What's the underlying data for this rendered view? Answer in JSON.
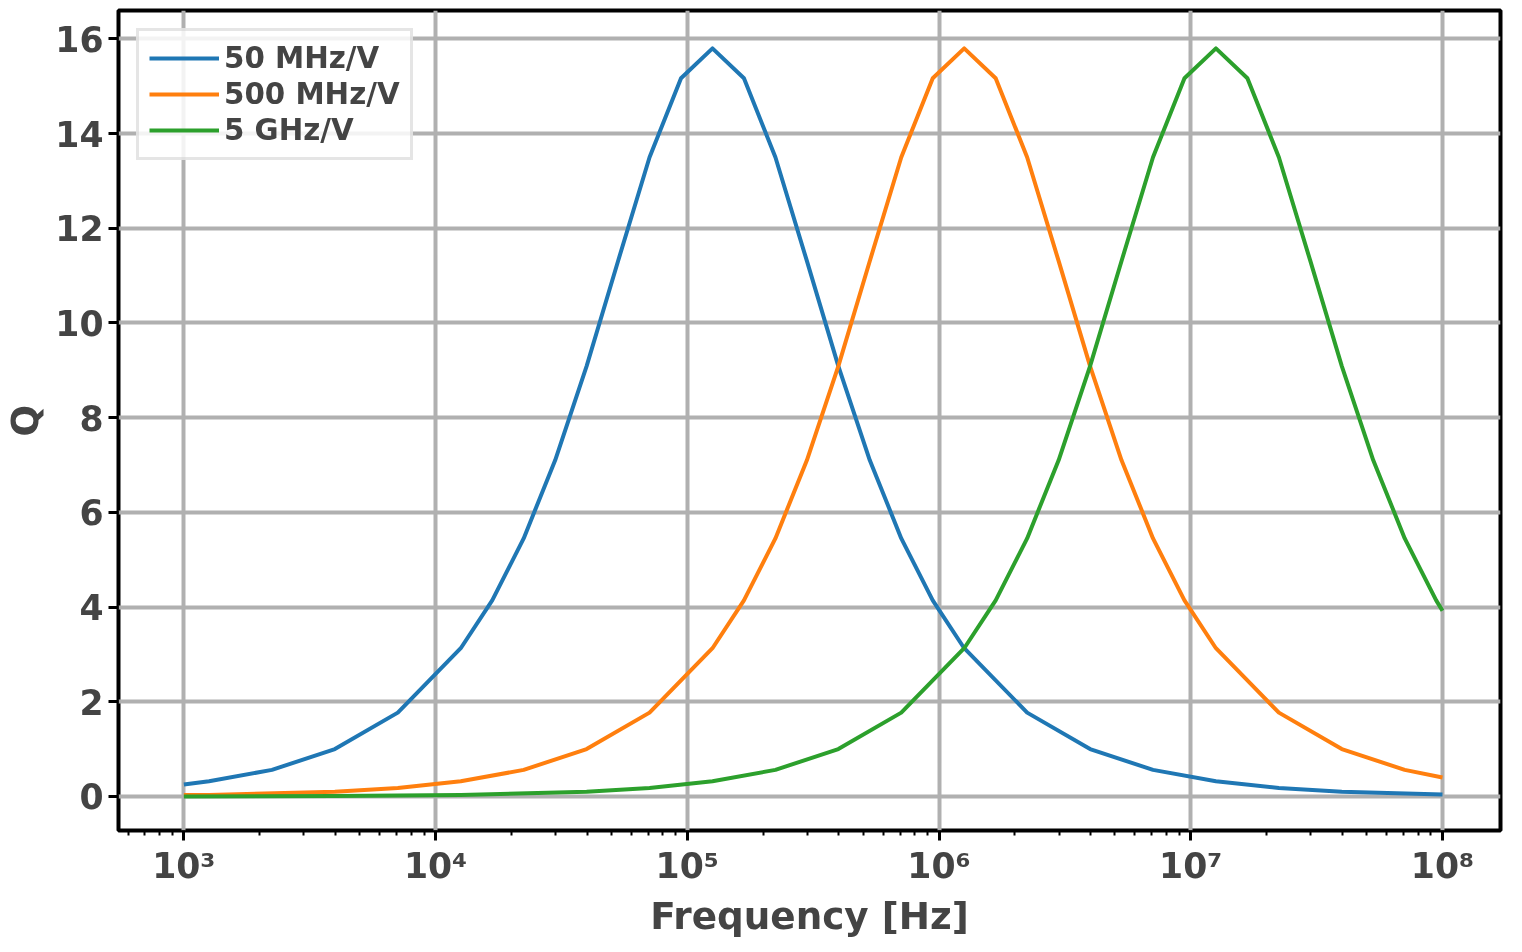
{
  "chart_data": {
    "type": "line",
    "xlabel": "Frequency [Hz]",
    "ylabel": "Q",
    "log": "x",
    "grid": true,
    "legend": "top left",
    "line_style": "solid",
    "marker": "none",
    "xlim": [
      550,
      170000000.0
    ],
    "ylim": [
      -0.72,
      16.6
    ],
    "xticks": [
      {
        "value": 1000.0,
        "label": "10³"
      },
      {
        "value": 10000.0,
        "label": "10⁴"
      },
      {
        "value": 100000.0,
        "label": "10⁵"
      },
      {
        "value": 1000000.0,
        "label": "10⁶"
      },
      {
        "value": 10000000.0,
        "label": "10⁷"
      },
      {
        "value": 100000000.0,
        "label": "10⁸"
      }
    ],
    "yticks": [
      0,
      2,
      4,
      6,
      8,
      10,
      12,
      14,
      16
    ],
    "series": [
      {
        "name": "50 MHz/V",
        "color": "#1f77b4",
        "x": [
          1000.0,
          1258.9,
          2238.7,
          3981.1,
          7079.5,
          12589.0,
          16788.0,
          22387.0,
          29854.0,
          39811.0,
          53088.0,
          70795.0,
          94406.0,
          125890.0,
          167880.0,
          223870.0,
          298540.0,
          398110.0,
          530880.0,
          707950.0,
          944060.0,
          1258900.0,
          2238700.0,
          3981100.0,
          7079500.0,
          12589000.0,
          22387000.0,
          39811000.0,
          100000000.0
        ],
        "values": [
          0.25,
          0.32,
          0.56,
          1.0,
          1.77,
          3.13,
          4.14,
          5.45,
          7.1,
          9.09,
          11.31,
          13.5,
          15.17,
          15.8,
          15.17,
          13.5,
          11.31,
          9.09,
          7.1,
          5.45,
          4.14,
          3.13,
          1.77,
          1.0,
          0.56,
          0.32,
          0.18,
          0.1,
          0.04
        ]
      },
      {
        "name": "500 MHz/V",
        "color": "#ff7f0e",
        "x": [
          1000.0,
          1258.9,
          3981.1,
          7079.5,
          12589.0,
          22387.0,
          39811.0,
          70795.0,
          125890.0,
          167880.0,
          223870.0,
          298540.0,
          398110.0,
          530880.0,
          707950.0,
          944060.0,
          1258900.0,
          1678800.0,
          2238700.0,
          2985400.0,
          3981100.0,
          5308800.0,
          7079500.0,
          9440600.0,
          12589000.0,
          22387000.0,
          39811000.0,
          70795000.0,
          100000000.0
        ],
        "values": [
          0.03,
          0.03,
          0.1,
          0.18,
          0.32,
          0.56,
          1.0,
          1.77,
          3.13,
          4.14,
          5.45,
          7.1,
          9.09,
          11.31,
          13.5,
          15.17,
          15.8,
          15.17,
          13.5,
          11.31,
          9.09,
          7.1,
          5.45,
          4.14,
          3.13,
          1.77,
          1.0,
          0.56,
          0.4
        ]
      },
      {
        "name": "5 GHz/V",
        "color": "#2ca02c",
        "x": [
          1000.0,
          3981.1,
          12589.0,
          39811.0,
          70795.0,
          125890.0,
          223870.0,
          398110.0,
          707950.0,
          1258900.0,
          1678800.0,
          2238700.0,
          2985400.0,
          3981100.0,
          5308800.0,
          7079500.0,
          9440600.0,
          12589000.0,
          16788000.0,
          22387000.0,
          29854000.0,
          39811000.0,
          53088000.0,
          70795000.0,
          94406000.0,
          100000000.0
        ],
        "values": [
          0.0,
          0.01,
          0.03,
          0.1,
          0.18,
          0.32,
          0.56,
          1.0,
          1.77,
          3.13,
          4.14,
          5.45,
          7.1,
          9.09,
          11.31,
          13.5,
          15.17,
          15.8,
          15.17,
          13.5,
          11.31,
          9.09,
          7.1,
          5.45,
          4.14,
          3.92
        ]
      }
    ]
  }
}
